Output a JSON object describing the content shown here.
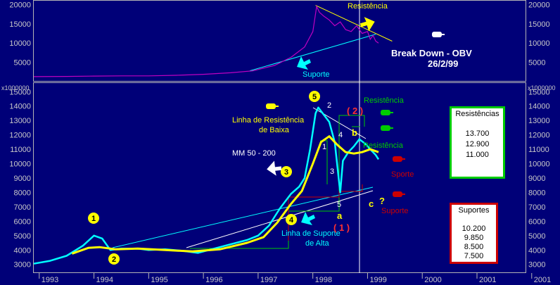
{
  "chart_data": [
    {
      "type": "line",
      "panel": "OBV",
      "yticks": [
        5000,
        10000,
        15000,
        20000
      ],
      "ylim": [
        0,
        21000
      ],
      "series": [
        {
          "color": "#c000c0",
          "points": [
            [
              1992.9,
              1300
            ],
            [
              1993.5,
              1350
            ],
            [
              1994.0,
              1450
            ],
            [
              1994.5,
              1500
            ],
            [
              1995.0,
              1500
            ],
            [
              1995.5,
              1650
            ],
            [
              1996.0,
              1900
            ],
            [
              1996.5,
              2300
            ],
            [
              1996.9,
              2800
            ],
            [
              1997.3,
              4200
            ],
            [
              1997.6,
              6300
            ],
            [
              1997.85,
              9000
            ],
            [
              1998.0,
              13000
            ],
            [
              1998.07,
              19500
            ],
            [
              1998.12,
              18000
            ],
            [
              1998.2,
              17000
            ],
            [
              1998.3,
              16000
            ],
            [
              1998.4,
              14500
            ],
            [
              1998.5,
              15500
            ],
            [
              1998.6,
              13500
            ],
            [
              1998.7,
              13000
            ],
            [
              1998.8,
              14500
            ],
            [
              1998.9,
              12500
            ],
            [
              1999.0,
              13000
            ],
            [
              1999.05,
              11000
            ],
            [
              1999.1,
              12000
            ],
            [
              1999.15,
              10500
            ],
            [
              1999.2,
              10000
            ]
          ]
        }
      ],
      "trendlines": [
        {
          "color": "#ffff00",
          "from": [
            1998.05,
            19800
          ],
          "to": [
            1999.45,
            10500
          ]
        },
        {
          "color": "#00ffff",
          "from": [
            1996.85,
            2800
          ],
          "to": [
            1999.15,
            12300
          ]
        }
      ],
      "annotations": [
        "Resistência",
        "Suporte",
        "Break Down - OBV",
        "26/2/99"
      ]
    },
    {
      "type": "line",
      "panel": "Price",
      "yticks": [
        3000,
        4000,
        5000,
        6000,
        7000,
        8000,
        9000,
        10000,
        11000,
        12000,
        13000,
        14000,
        15000
      ],
      "ylim": [
        2400,
        15600
      ],
      "scale_label": "x1000000",
      "series": [
        {
          "name": "MM 50 - 200",
          "color": "#00ffff",
          "points": [
            [
              1992.9,
              3050
            ],
            [
              1993.2,
              3250
            ],
            [
              1993.5,
              3600
            ],
            [
              1993.8,
              4300
            ],
            [
              1994.0,
              5000
            ],
            [
              1994.15,
              4800
            ],
            [
              1994.3,
              4000
            ],
            [
              1994.5,
              4100
            ],
            [
              1994.8,
              4100
            ],
            [
              1995.0,
              4000
            ],
            [
              1995.3,
              4050
            ],
            [
              1995.6,
              3950
            ],
            [
              1995.9,
              3800
            ],
            [
              1996.2,
              4100
            ],
            [
              1996.5,
              4400
            ],
            [
              1996.8,
              4700
            ],
            [
              1997.0,
              5000
            ],
            [
              1997.2,
              5700
            ],
            [
              1997.4,
              6900
            ],
            [
              1997.6,
              7900
            ],
            [
              1997.75,
              8400
            ],
            [
              1997.85,
              9000
            ],
            [
              1997.95,
              11000
            ],
            [
              1998.05,
              13500
            ],
            [
              1998.1,
              13900
            ],
            [
              1998.2,
              13400
            ],
            [
              1998.3,
              12900
            ],
            [
              1998.4,
              11500
            ],
            [
              1998.5,
              8000
            ],
            [
              1998.55,
              10200
            ],
            [
              1998.65,
              10800
            ],
            [
              1998.75,
              11200
            ],
            [
              1998.85,
              11700
            ],
            [
              1998.95,
              11400
            ],
            [
              1999.05,
              11000
            ],
            [
              1999.15,
              10600
            ],
            [
              1999.2,
              10300
            ]
          ]
        },
        {
          "name": "MM 50 - 200",
          "color": "#ffff00",
          "points": [
            [
              1993.6,
              3750
            ],
            [
              1993.9,
              4150
            ],
            [
              1994.1,
              4200
            ],
            [
              1994.4,
              4050
            ],
            [
              1994.8,
              4100
            ],
            [
              1995.3,
              4000
            ],
            [
              1995.8,
              3900
            ],
            [
              1996.3,
              4050
            ],
            [
              1996.8,
              4500
            ],
            [
              1997.1,
              4900
            ],
            [
              1997.35,
              5900
            ],
            [
              1997.6,
              7200
            ],
            [
              1997.8,
              8100
            ],
            [
              1998.0,
              10000
            ],
            [
              1998.15,
              11500
            ],
            [
              1998.3,
              11900
            ],
            [
              1998.45,
              11300
            ],
            [
              1998.6,
              10800
            ],
            [
              1998.75,
              10700
            ],
            [
              1998.9,
              10800
            ],
            [
              1999.05,
              11000
            ],
            [
              1999.2,
              10800
            ]
          ]
        }
      ],
      "labels": [
        "Linha de Resistência de Baixa",
        "MM 50 - 200",
        "Linha de Suporte de Alta",
        "Resistência",
        "Resistência",
        "Sporte",
        "Suporte",
        "1",
        "2",
        "3",
        "4",
        "5",
        "2",
        "4",
        "1",
        "3",
        "5",
        "b",
        "a",
        "c",
        "?",
        "( 2 )",
        "( 1 )"
      ]
    }
  ],
  "xaxis": {
    "ticks": [
      "1993",
      "1994",
      "1995",
      "1996",
      "1997",
      "1998",
      "1999",
      "2000",
      "2001",
      "2001"
    ]
  },
  "colors": {
    "background": "#000078",
    "obv": "#c000c0",
    "price": "#00ffff",
    "ma": "#ffff00",
    "resistance": "#00cc00",
    "support": "#cc0000"
  },
  "annotations": {
    "obv_resistencia": "Resistência",
    "obv_suporte": "Suporte",
    "breakdown": "Break Down - OBV",
    "breakdown_date": "26/2/99",
    "linha_resistencia_1": "Linha de Resistência",
    "linha_resistencia_2": "de Baixa",
    "mm": "MM 50 - 200",
    "linha_suporte_1": "Linha de Suporte",
    "linha_suporte_2": "de Alta",
    "resistencia_top": "Resistência",
    "resistencia_mid": "Resistência",
    "sporte": "Sporte",
    "suporte_low": "Suporte",
    "paren2": "( 2 )",
    "paren1": "( 1 )",
    "wave_b": "b",
    "wave_a": "a",
    "wave_c": "c",
    "wave_q": "?",
    "sub2": "2",
    "sub4": "4",
    "sub1": "1",
    "sub3": "3",
    "sub5": "5"
  },
  "resistencias_box": {
    "title": "Resistências",
    "values": [
      "13.700",
      "12.900",
      "11.000"
    ]
  },
  "suportes_box": {
    "title": "Suportes",
    "values": [
      "10.200",
      "9.850",
      "8.500",
      "7.500"
    ]
  }
}
